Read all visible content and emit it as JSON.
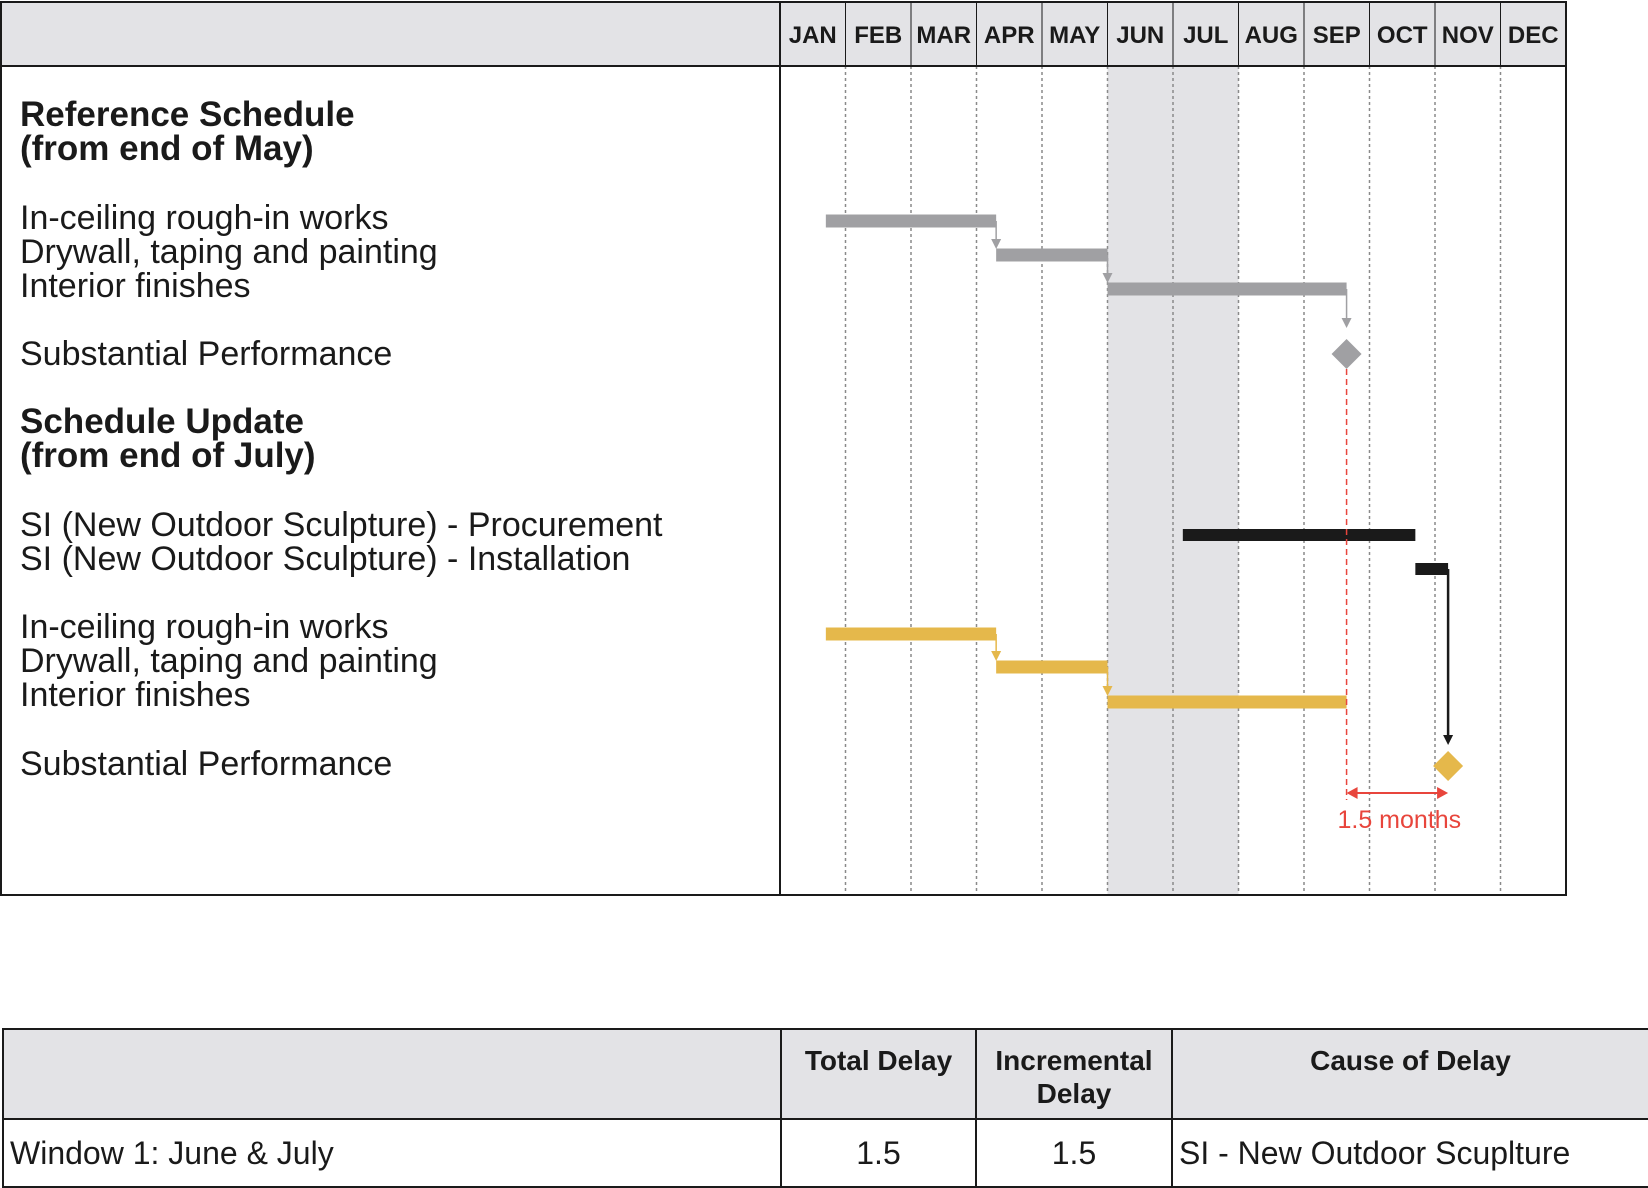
{
  "chart_data": {
    "type": "gantt",
    "months": [
      "JAN",
      "FEB",
      "MAR",
      "APR",
      "MAY",
      "JUN",
      "JUL",
      "AUG",
      "SEP",
      "OCT",
      "NOV",
      "DEC"
    ],
    "shaded_window_months": [
      "JUN",
      "JUL"
    ],
    "sections": [
      {
        "title": "Reference Schedule",
        "subtitle": "(from end of May)",
        "color": "#a0a0a3",
        "tasks": [
          {
            "name": "In-ceiling rough-in works",
            "start": 0.7,
            "end": 3.3
          },
          {
            "name": "Drywall, taping and painting",
            "start": 3.3,
            "end": 5.0
          },
          {
            "name": "Interior finishes",
            "start": 5.0,
            "end": 8.65
          }
        ],
        "milestone": {
          "name": "Substantial Performance",
          "at": 8.65
        }
      },
      {
        "title": "Schedule Update",
        "subtitle": "(from end of July)",
        "color": "#e5b84b",
        "si_color": "#1a1a1a",
        "si_tasks": [
          {
            "name": "SI (New Outdoor Sculpture) - Procurement",
            "start": 6.15,
            "end": 9.7
          },
          {
            "name": "SI (New Outdoor Sculpture) - Installation",
            "start": 9.7,
            "end": 10.2
          }
        ],
        "tasks": [
          {
            "name": "In-ceiling rough-in works",
            "start": 0.7,
            "end": 3.3
          },
          {
            "name": "Drywall, taping and painting",
            "start": 3.3,
            "end": 5.0
          },
          {
            "name": "Interior finishes",
            "start": 5.0,
            "end": 8.65
          }
        ],
        "milestone": {
          "name": "Substantial Performance",
          "at": 10.2
        }
      }
    ],
    "annotation": {
      "text": "1.5 months",
      "from": 8.65,
      "to": 10.2,
      "color": "#e8453c"
    }
  },
  "delay_table": {
    "headers": [
      "",
      "Total Delay",
      "Incremental Delay",
      "Cause of Delay"
    ],
    "rows": [
      {
        "window": "Window 1: June & July",
        "total_delay": "1.5",
        "incremental_delay": "1.5",
        "cause": "SI - New Outdoor Scuplture"
      }
    ]
  },
  "colors": {
    "header_bg": "#e3e3e6",
    "shade": "#e3e3e6",
    "reference": "#a0a0a3",
    "update": "#e5b84b",
    "si": "#1a1a1a",
    "annotation": "#e8453c"
  }
}
